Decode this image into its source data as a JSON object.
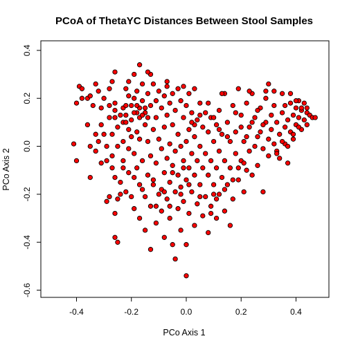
{
  "chart_data": {
    "type": "scatter",
    "title": "PCoA of ThetaYC Distances Between Stool Samples",
    "xlabel": "PCo Axis 1",
    "ylabel": "PCo Axis 2",
    "xlim": [
      -0.53,
      0.52
    ],
    "ylim": [
      -0.63,
      0.44
    ],
    "xticks": [
      -0.4,
      -0.2,
      0.0,
      0.2,
      0.4
    ],
    "yticks": [
      -0.6,
      -0.4,
      -0.2,
      0.0,
      0.2,
      0.4
    ],
    "xtick_labels": [
      "-0.4",
      "-0.2",
      "0.0",
      "0.2",
      "0.4"
    ],
    "ytick_labels": [
      "-0.6",
      "-0.4",
      "-0.2",
      "0.0",
      "0.2",
      "0.4"
    ],
    "grid": false,
    "marker": {
      "shape": "circle",
      "fill": "#ff0000",
      "edge": "#000000"
    },
    "points": [
      [
        -0.41,
        0.01
      ],
      [
        -0.4,
        0.18
      ],
      [
        -0.4,
        -0.06
      ],
      [
        -0.39,
        0.25
      ],
      [
        -0.38,
        0.24
      ],
      [
        -0.38,
        0.2
      ],
      [
        -0.36,
        0.2
      ],
      [
        -0.36,
        0.09
      ],
      [
        -0.35,
        0.0
      ],
      [
        -0.35,
        -0.13
      ],
      [
        -0.34,
        0.17
      ],
      [
        -0.33,
        0.26
      ],
      [
        -0.33,
        0.05
      ],
      [
        -0.33,
        -0.02
      ],
      [
        -0.32,
        0.23
      ],
      [
        -0.31,
        0.16
      ],
      [
        -0.31,
        0.09
      ],
      [
        -0.31,
        -0.07
      ],
      [
        -0.3,
        0.2
      ],
      [
        -0.29,
        0.0
      ],
      [
        -0.29,
        -0.23
      ],
      [
        -0.28,
        0.24
      ],
      [
        -0.28,
        0.17
      ],
      [
        -0.28,
        0.12
      ],
      [
        -0.27,
        0.05
      ],
      [
        -0.27,
        -0.04
      ],
      [
        -0.27,
        -0.09
      ],
      [
        -0.26,
        0.31
      ],
      [
        -0.26,
        0.18
      ],
      [
        -0.26,
        0.15
      ],
      [
        -0.26,
        -0.28
      ],
      [
        -0.25,
        0.08
      ],
      [
        -0.25,
        0.0
      ],
      [
        -0.24,
        -0.15
      ],
      [
        -0.24,
        -0.2
      ],
      [
        -0.23,
        0.16
      ],
      [
        -0.23,
        0.1
      ],
      [
        -0.23,
        0.02
      ],
      [
        -0.23,
        -0.06
      ],
      [
        -0.22,
        0.24
      ],
      [
        -0.22,
        0.17
      ],
      [
        -0.22,
        0.13
      ],
      [
        -0.22,
        -0.19
      ],
      [
        -0.21,
        0.21
      ],
      [
        -0.21,
        0.07
      ],
      [
        -0.21,
        -0.01
      ],
      [
        -0.21,
        -0.11
      ],
      [
        -0.2,
        0.17
      ],
      [
        -0.2,
        0.11
      ],
      [
        -0.2,
        0.04
      ],
      [
        -0.2,
        -0.21
      ],
      [
        -0.19,
        0.3
      ],
      [
        -0.19,
        0.2
      ],
      [
        -0.19,
        -0.03
      ],
      [
        -0.19,
        -0.26
      ],
      [
        -0.18,
        0.23
      ],
      [
        -0.18,
        0.14
      ],
      [
        -0.18,
        0.06
      ],
      [
        -0.18,
        -0.09
      ],
      [
        -0.17,
        0.34
      ],
      [
        -0.17,
        0.16
      ],
      [
        -0.17,
        0.03
      ],
      [
        -0.17,
        -0.16
      ],
      [
        -0.17,
        -0.3
      ],
      [
        -0.16,
        0.26
      ],
      [
        -0.16,
        0.19
      ],
      [
        -0.16,
        -0.06
      ],
      [
        -0.15,
        0.16
      ],
      [
        -0.15,
        0.09
      ],
      [
        -0.15,
        -0.21
      ],
      [
        -0.15,
        -0.35
      ],
      [
        -0.14,
        0.22
      ],
      [
        -0.14,
        0.12
      ],
      [
        -0.14,
        0.02
      ],
      [
        -0.14,
        -0.12
      ],
      [
        -0.13,
        0.3
      ],
      [
        -0.13,
        0.17
      ],
      [
        -0.13,
        -0.04
      ],
      [
        -0.13,
        -0.25
      ],
      [
        -0.12,
        0.26
      ],
      [
        -0.12,
        0.07
      ],
      [
        -0.12,
        -0.16
      ],
      [
        -0.11,
        0.19
      ],
      [
        -0.11,
        0.12
      ],
      [
        -0.11,
        -0.07
      ],
      [
        -0.11,
        -0.32
      ],
      [
        -0.1,
        0.23
      ],
      [
        -0.1,
        0.03
      ],
      [
        -0.1,
        -0.2
      ],
      [
        -0.09,
        0.16
      ],
      [
        -0.09,
        -0.01
      ],
      [
        -0.09,
        -0.27
      ],
      [
        -0.08,
        0.21
      ],
      [
        -0.08,
        0.08
      ],
      [
        -0.08,
        -0.11
      ],
      [
        -0.08,
        -0.38
      ],
      [
        -0.07,
        0.25
      ],
      [
        -0.07,
        0.13
      ],
      [
        -0.07,
        -0.05
      ],
      [
        -0.07,
        -0.22
      ],
      [
        -0.06,
        0.18
      ],
      [
        -0.06,
        0.01
      ],
      [
        -0.06,
        -0.15
      ],
      [
        -0.06,
        -0.3
      ],
      [
        -0.05,
        0.22
      ],
      [
        -0.05,
        0.09
      ],
      [
        -0.05,
        -0.08
      ],
      [
        -0.04,
        0.15
      ],
      [
        -0.04,
        -0.02
      ],
      [
        -0.04,
        -0.19
      ],
      [
        -0.04,
        -0.47
      ],
      [
        -0.03,
        0.24
      ],
      [
        -0.03,
        0.05
      ],
      [
        -0.03,
        -0.12
      ],
      [
        -0.03,
        -0.26
      ],
      [
        -0.02,
        0.19
      ],
      [
        -0.02,
        0.0
      ],
      [
        -0.02,
        -0.17
      ],
      [
        -0.02,
        -0.35
      ],
      [
        -0.01,
        0.25
      ],
      [
        -0.01,
        0.12
      ],
      [
        -0.01,
        -0.06
      ],
      [
        -0.01,
        -0.23
      ],
      [
        0.0,
        0.17
      ],
      [
        0.0,
        0.02
      ],
      [
        0.0,
        -0.14
      ],
      [
        0.0,
        -0.41
      ],
      [
        0.0,
        -0.54
      ],
      [
        0.01,
        0.22
      ],
      [
        0.01,
        0.07
      ],
      [
        0.01,
        -0.09
      ],
      [
        0.01,
        -0.28
      ],
      [
        0.02,
        0.14
      ],
      [
        0.02,
        -0.03
      ],
      [
        0.02,
        -0.19
      ],
      [
        0.03,
        0.24
      ],
      [
        0.03,
        0.04
      ],
      [
        0.03,
        -0.12
      ],
      [
        0.03,
        -0.33
      ],
      [
        0.04,
        0.11
      ],
      [
        0.04,
        -0.06
      ],
      [
        0.04,
        -0.24
      ],
      [
        0.05,
        0.18
      ],
      [
        0.05,
        0.0
      ],
      [
        0.05,
        -0.16
      ],
      [
        0.06,
        0.08
      ],
      [
        0.06,
        -0.09
      ],
      [
        0.06,
        -0.29
      ],
      [
        0.07,
        0.14
      ],
      [
        0.07,
        -0.03
      ],
      [
        0.07,
        -0.21
      ],
      [
        0.08,
        0.06
      ],
      [
        0.08,
        -0.12
      ],
      [
        0.08,
        -0.36
      ],
      [
        0.09,
        0.12
      ],
      [
        0.09,
        -0.06
      ],
      [
        0.09,
        -0.25
      ],
      [
        0.1,
        0.02
      ],
      [
        0.1,
        -0.16
      ],
      [
        0.11,
        0.09
      ],
      [
        0.11,
        -0.09
      ],
      [
        0.11,
        -0.3
      ],
      [
        0.12,
        0.15
      ],
      [
        0.12,
        -0.02
      ],
      [
        0.12,
        -0.2
      ],
      [
        0.13,
        0.05
      ],
      [
        0.13,
        -0.13
      ],
      [
        0.14,
        0.22
      ],
      [
        0.14,
        -0.06
      ],
      [
        0.14,
        -0.27
      ],
      [
        0.15,
        0.1
      ],
      [
        0.15,
        -0.16
      ],
      [
        0.16,
        0.02
      ],
      [
        0.16,
        -0.09
      ],
      [
        0.17,
        0.17
      ],
      [
        0.17,
        -0.22
      ],
      [
        0.18,
        0.06
      ],
      [
        0.18,
        -0.03
      ],
      [
        0.19,
        0.24
      ],
      [
        0.19,
        -0.14
      ],
      [
        0.2,
        0.13
      ],
      [
        0.2,
        -0.06
      ],
      [
        0.21,
        0.02
      ],
      [
        0.21,
        -0.19
      ],
      [
        0.22,
        0.18
      ],
      [
        0.22,
        -0.1
      ],
      [
        0.23,
        0.08
      ],
      [
        0.23,
        -0.02
      ],
      [
        0.24,
        0.22
      ],
      [
        0.24,
        -0.12
      ],
      [
        0.25,
        0.12
      ],
      [
        0.25,
        0.0
      ],
      [
        0.26,
        0.04
      ],
      [
        0.26,
        -0.08
      ],
      [
        0.27,
        0.16
      ],
      [
        0.27,
        0.06
      ],
      [
        0.28,
        -0.01
      ],
      [
        0.28,
        -0.19
      ],
      [
        0.29,
        0.2
      ],
      [
        0.29,
        0.1
      ],
      [
        0.3,
        0.03
      ],
      [
        0.3,
        -0.04
      ],
      [
        0.31,
        0.13
      ],
      [
        0.31,
        0.07
      ],
      [
        0.32,
        0.17
      ],
      [
        0.32,
        0.01
      ],
      [
        0.33,
        -0.02
      ],
      [
        0.33,
        0.1
      ],
      [
        0.34,
        0.05
      ],
      [
        0.34,
        -0.05
      ],
      [
        0.35,
        0.14
      ],
      [
        0.35,
        0.22
      ],
      [
        0.36,
        0.08
      ],
      [
        0.36,
        0.01
      ],
      [
        0.37,
        0.11
      ],
      [
        0.37,
        -0.07
      ],
      [
        0.38,
        0.18
      ],
      [
        0.38,
        0.06
      ],
      [
        0.39,
        0.13
      ],
      [
        0.39,
        0.03
      ],
      [
        0.4,
        0.16
      ],
      [
        0.4,
        0.09
      ],
      [
        0.41,
        0.12
      ],
      [
        0.41,
        0.19
      ],
      [
        0.42,
        0.07
      ],
      [
        0.42,
        0.15
      ],
      [
        0.43,
        0.11
      ],
      [
        0.43,
        0.18
      ],
      [
        0.44,
        0.09
      ],
      [
        0.44,
        0.14
      ],
      [
        0.45,
        0.13
      ],
      [
        0.46,
        0.12
      ],
      [
        0.47,
        0.12
      ],
      [
        -0.05,
        -0.41
      ],
      [
        0.16,
        -0.33
      ],
      [
        0.1,
        -0.2
      ],
      [
        -0.13,
        -0.43
      ],
      [
        -0.26,
        -0.38
      ],
      [
        -0.25,
        -0.4
      ],
      [
        -0.28,
        -0.21
      ],
      [
        -0.27,
        0.27
      ],
      [
        -0.35,
        0.21
      ],
      [
        -0.14,
        0.31
      ],
      [
        -0.21,
        0.27
      ],
      [
        -0.07,
        0.27
      ],
      [
        0.03,
        0.09
      ],
      [
        0.13,
        0.22
      ],
      [
        0.23,
        0.23
      ],
      [
        0.29,
        0.23
      ],
      [
        -0.17,
        0.12
      ],
      [
        -0.19,
        0.14
      ],
      [
        -0.15,
        0.14
      ],
      [
        -0.18,
        0.17
      ],
      [
        -0.16,
        0.13
      ],
      [
        -0.24,
        0.13
      ],
      [
        -0.22,
        0.1
      ],
      [
        -0.26,
        0.12
      ],
      [
        0.4,
        0.19
      ],
      [
        0.36,
        0.17
      ],
      [
        0.32,
        0.23
      ],
      [
        0.38,
        0.22
      ],
      [
        0.3,
        0.26
      ],
      [
        0.42,
        0.16
      ],
      [
        0.33,
        -0.03
      ],
      [
        0.35,
        0.02
      ],
      [
        0.37,
        0.0
      ],
      [
        0.39,
        0.05
      ],
      [
        0.41,
        0.08
      ],
      [
        0.44,
        0.16
      ],
      [
        -0.11,
        -0.25
      ],
      [
        -0.09,
        -0.18
      ],
      [
        -0.06,
        -0.25
      ],
      [
        -0.02,
        -0.2
      ],
      [
        0.01,
        -0.16
      ],
      [
        0.05,
        -0.21
      ],
      [
        0.09,
        -0.28
      ],
      [
        0.11,
        -0.22
      ],
      [
        0.14,
        -0.18
      ],
      [
        0.17,
        -0.14
      ],
      [
        0.19,
        -0.09
      ],
      [
        0.21,
        -0.07
      ],
      [
        -0.3,
        0.05
      ],
      [
        -0.32,
        0.02
      ],
      [
        -0.29,
        -0.06
      ],
      [
        -0.26,
        -0.13
      ],
      [
        -0.25,
        -0.22
      ],
      [
        -0.23,
        -0.09
      ],
      [
        -0.19,
        -0.13
      ],
      [
        -0.16,
        -0.18
      ],
      [
        -0.12,
        -0.14
      ],
      [
        -0.08,
        -0.19
      ],
      [
        -0.05,
        -0.11
      ],
      [
        -0.01,
        -0.09
      ],
      [
        0.02,
        0.1
      ],
      [
        0.05,
        0.13
      ],
      [
        0.08,
        0.18
      ],
      [
        0.1,
        0.12
      ],
      [
        0.12,
        0.07
      ],
      [
        0.15,
        0.04
      ],
      [
        0.18,
        0.14
      ],
      [
        0.2,
        0.08
      ],
      [
        0.22,
        0.04
      ],
      [
        0.24,
        0.1
      ],
      [
        0.26,
        0.15
      ],
      [
        0.28,
        0.09
      ]
    ]
  }
}
